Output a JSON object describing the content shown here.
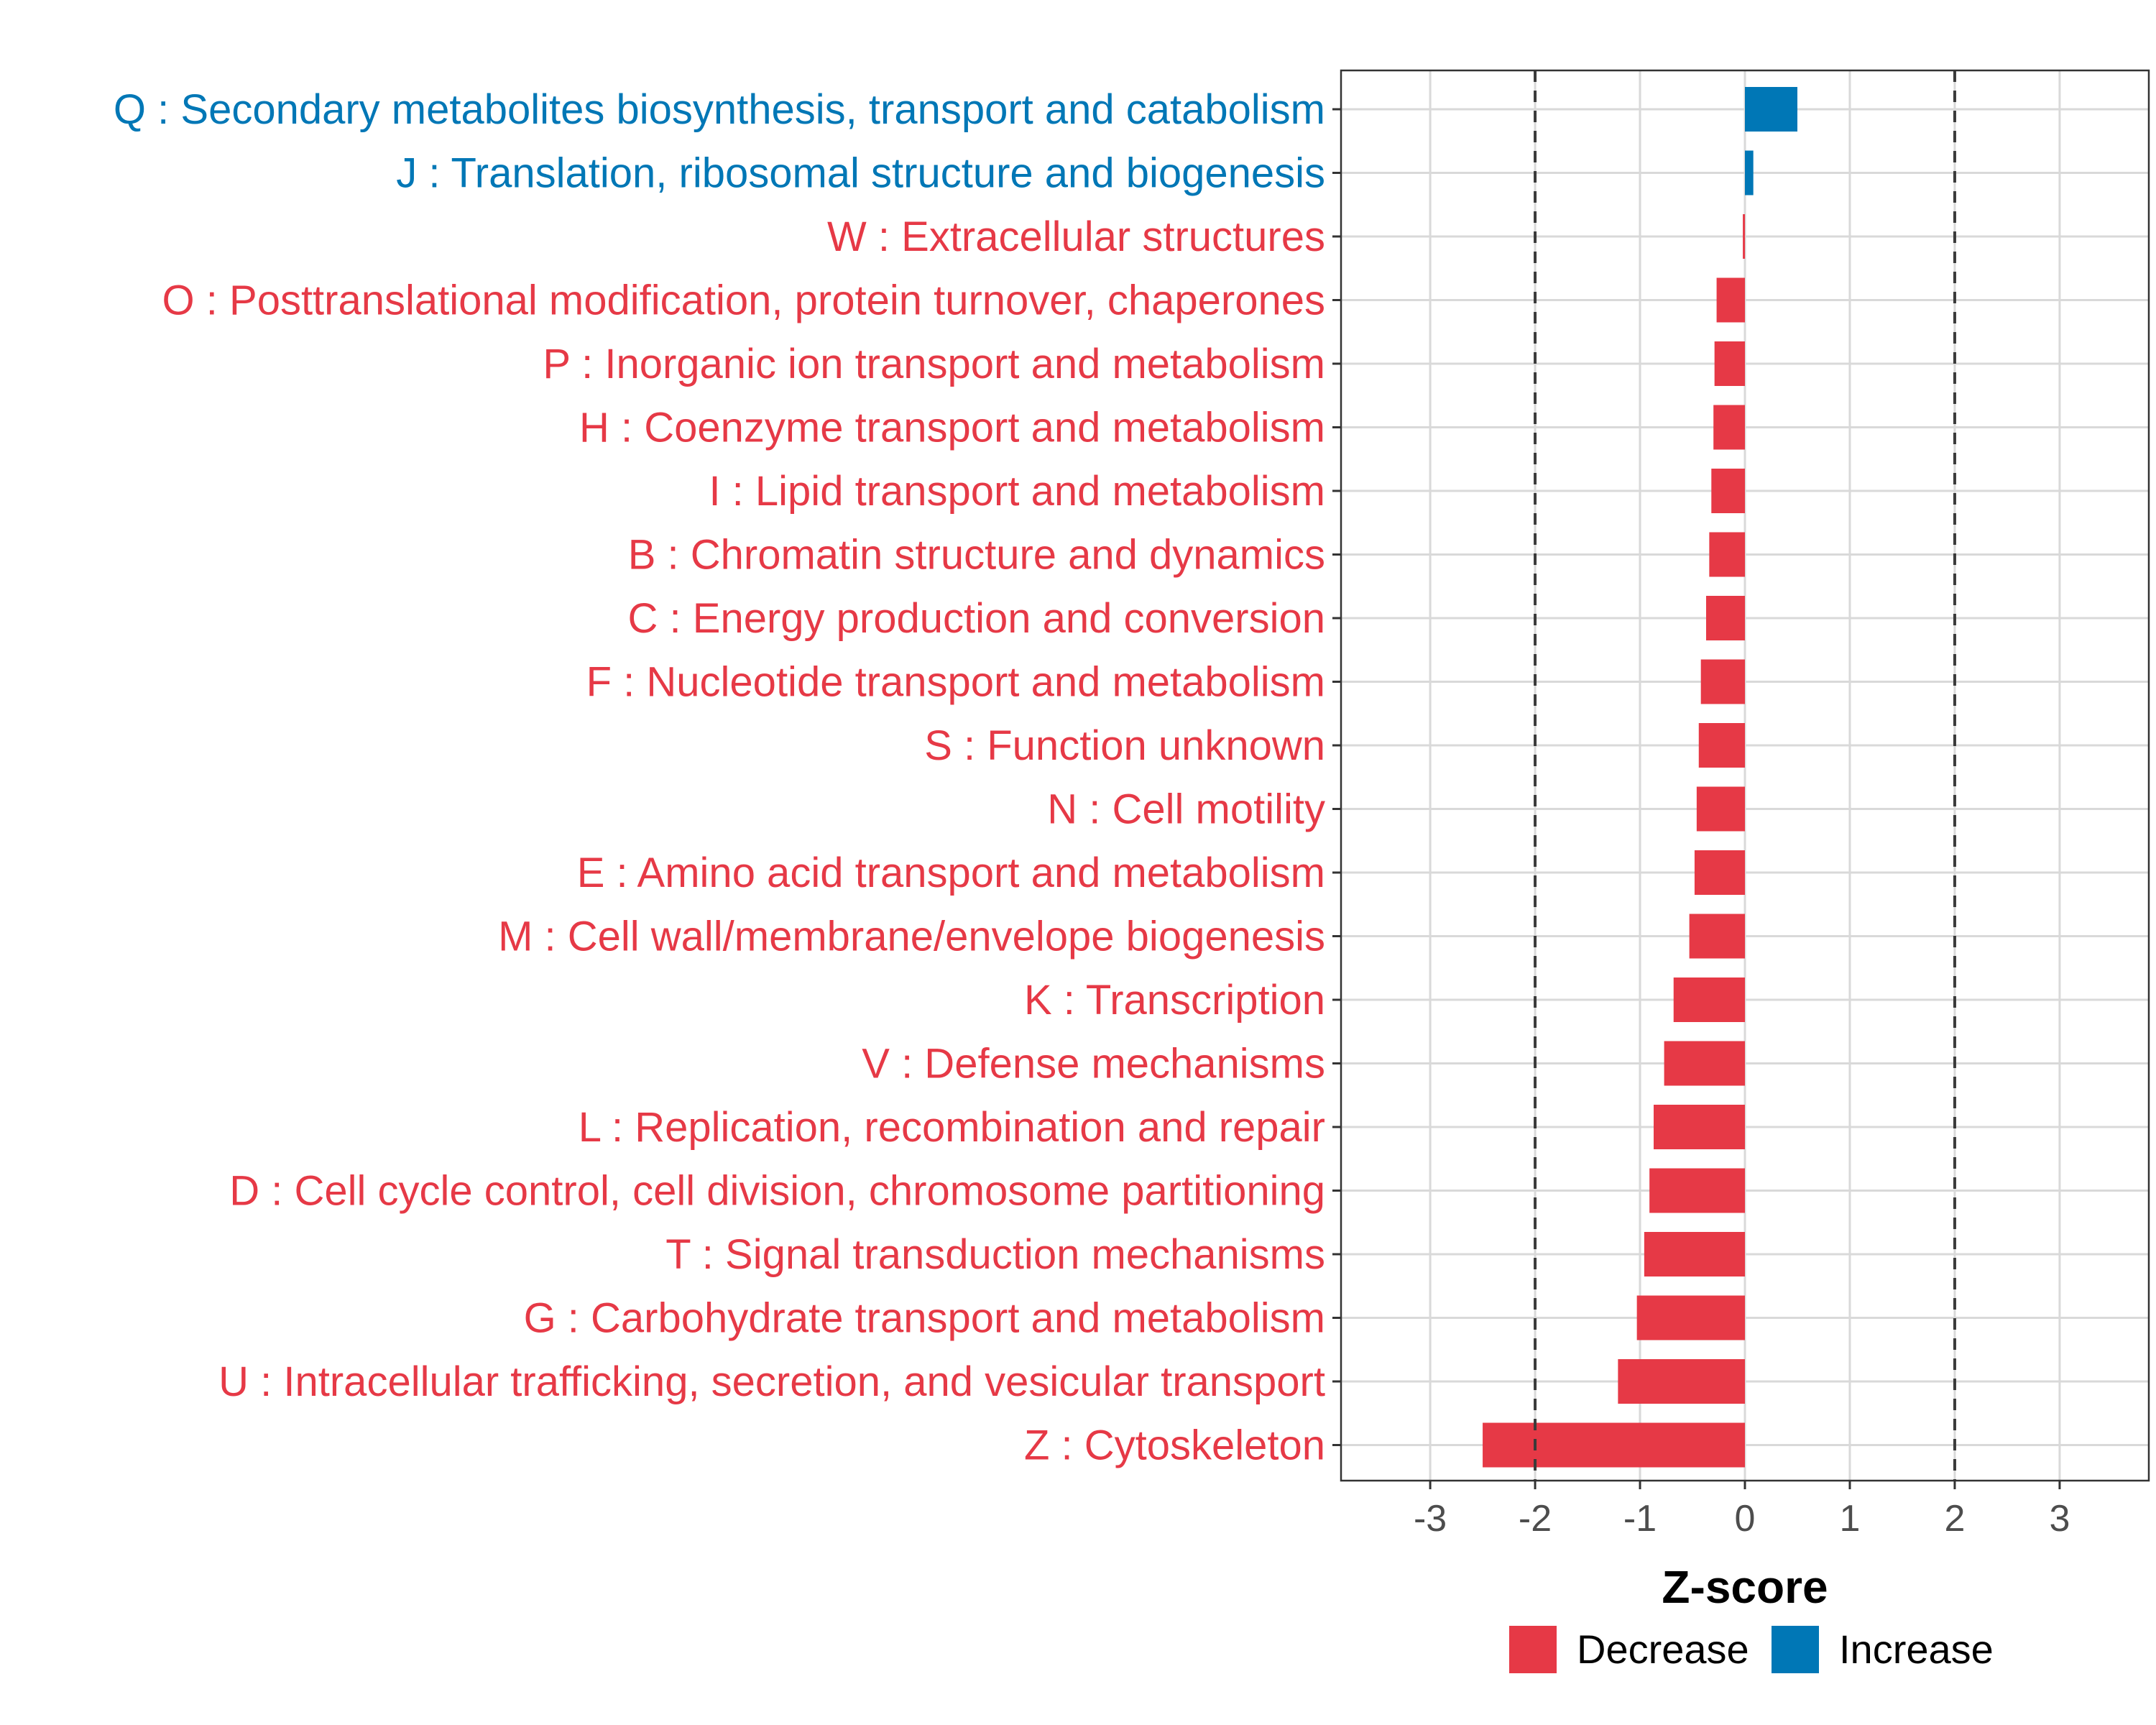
{
  "chart_data": {
    "type": "bar",
    "orientation": "horizontal",
    "title": "",
    "xlabel": "Z-score",
    "ylabel": "",
    "xlim": [
      -3.85,
      3.85
    ],
    "xticks": [
      -3,
      -2,
      -1,
      0,
      1,
      2,
      3
    ],
    "xtick_labels": [
      "-3",
      "-2",
      "-1",
      "0",
      "1",
      "2",
      "3"
    ],
    "reference_lines": [
      -2,
      2
    ],
    "grid": true,
    "categories": [
      "Q : Secondary metabolites biosynthesis, transport and catabolism",
      "J : Translation, ribosomal structure and biogenesis",
      "W : Extracellular structures",
      "O : Posttranslational modification, protein turnover, chaperones",
      "P : Inorganic ion transport and metabolism",
      "H : Coenzyme transport and metabolism",
      "I : Lipid transport and metabolism",
      "B : Chromatin structure and dynamics",
      "C : Energy production and conversion",
      "F : Nucleotide transport and metabolism",
      "S : Function unknown",
      "N : Cell motility",
      "E : Amino acid transport and metabolism",
      "M : Cell wall/membrane/envelope biogenesis",
      "K : Transcription",
      "V : Defense mechanisms",
      "L : Replication, recombination and repair",
      "D : Cell cycle control, cell division, chromosome partitioning",
      "T : Signal transduction mechanisms",
      "G : Carbohydrate transport and metabolism",
      "U : Intracellular trafficking, secretion, and vesicular transport",
      "Z : Cytoskeleton"
    ],
    "values": [
      0.5,
      0.08,
      -0.02,
      -0.27,
      -0.29,
      -0.3,
      -0.32,
      -0.34,
      -0.37,
      -0.42,
      -0.44,
      -0.46,
      -0.48,
      -0.53,
      -0.68,
      -0.77,
      -0.87,
      -0.91,
      -0.96,
      -1.03,
      -1.21,
      -2.5
    ],
    "groups": [
      "Increase",
      "Increase",
      "Decrease",
      "Decrease",
      "Decrease",
      "Decrease",
      "Decrease",
      "Decrease",
      "Decrease",
      "Decrease",
      "Decrease",
      "Decrease",
      "Decrease",
      "Decrease",
      "Decrease",
      "Decrease",
      "Decrease",
      "Decrease",
      "Decrease",
      "Decrease",
      "Decrease",
      "Decrease"
    ],
    "legend": {
      "position": "bottom",
      "entries": [
        {
          "label": "Decrease",
          "color": "#E63946"
        },
        {
          "label": "Increase",
          "color": "#0077B6"
        }
      ]
    },
    "colors": {
      "Decrease": "#E63946",
      "Increase": "#0077B6"
    }
  }
}
